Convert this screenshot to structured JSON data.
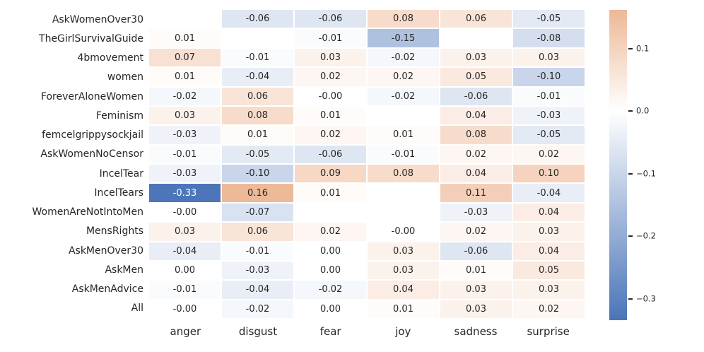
{
  "figure": {
    "background": "#ffffff",
    "text_color": "#262626"
  },
  "chart_data": {
    "type": "heatmap",
    "title": "",
    "xlabel": "",
    "ylabel": "",
    "rows": [
      "AskWomenOver30",
      "TheGirlSurvivalGuide",
      "4bmovement",
      "women",
      "ForeverAloneWomen",
      "Feminism",
      "femcelgrippysockjail",
      "AskWomenNoCensor",
      "IncelTear",
      "IncelTears",
      "WomenAreNotIntoMen",
      "MensRights",
      "AskMenOver30",
      "AskMen",
      "AskMenAdvice",
      "All"
    ],
    "columns": [
      "anger",
      "disgust",
      "fear",
      "joy",
      "sadness",
      "surprise"
    ],
    "values": [
      [
        null,
        -0.06,
        -0.06,
        0.08,
        0.06,
        -0.05
      ],
      [
        0.01,
        null,
        -0.01,
        -0.15,
        null,
        -0.08
      ],
      [
        0.07,
        -0.01,
        0.03,
        -0.02,
        0.03,
        0.03
      ],
      [
        0.01,
        -0.04,
        0.02,
        0.02,
        0.05,
        -0.1
      ],
      [
        -0.02,
        0.06,
        0.0,
        -0.02,
        -0.06,
        -0.01
      ],
      [
        0.03,
        0.08,
        0.01,
        null,
        0.04,
        -0.03
      ],
      [
        -0.03,
        0.01,
        0.02,
        0.01,
        0.08,
        -0.05
      ],
      [
        -0.01,
        -0.05,
        -0.06,
        -0.01,
        0.02,
        0.02
      ],
      [
        -0.03,
        -0.1,
        0.09,
        0.08,
        0.04,
        0.1
      ],
      [
        -0.33,
        0.16,
        0.01,
        null,
        0.11,
        -0.04
      ],
      [
        0.0,
        -0.07,
        null,
        null,
        -0.03,
        0.04
      ],
      [
        0.03,
        0.06,
        0.02,
        0.0,
        0.02,
        0.03
      ],
      [
        -0.04,
        -0.01,
        0.0,
        0.03,
        -0.06,
        0.04
      ],
      [
        0.0,
        -0.03,
        0.0,
        0.03,
        0.01,
        0.05
      ],
      [
        -0.01,
        -0.04,
        -0.02,
        0.04,
        0.03,
        0.03
      ],
      [
        0.0,
        -0.02,
        0.0,
        0.01,
        0.03,
        0.02
      ]
    ],
    "value_labels": [
      [
        null,
        "-0.06",
        "-0.06",
        "0.08",
        "0.06",
        "-0.05"
      ],
      [
        "0.01",
        null,
        "-0.01",
        "-0.15",
        null,
        "-0.08"
      ],
      [
        "0.07",
        "-0.01",
        "0.03",
        "-0.02",
        "0.03",
        "0.03"
      ],
      [
        "0.01",
        "-0.04",
        "0.02",
        "0.02",
        "0.05",
        "-0.10"
      ],
      [
        "-0.02",
        "0.06",
        "-0.00",
        "-0.02",
        "-0.06",
        "-0.01"
      ],
      [
        "0.03",
        "0.08",
        "0.01",
        null,
        "0.04",
        "-0.03"
      ],
      [
        "-0.03",
        "0.01",
        "0.02",
        "0.01",
        "0.08",
        "-0.05"
      ],
      [
        "-0.01",
        "-0.05",
        "-0.06",
        "-0.01",
        "0.02",
        "0.02"
      ],
      [
        "-0.03",
        "-0.10",
        "0.09",
        "0.08",
        "0.04",
        "0.10"
      ],
      [
        "-0.33",
        "0.16",
        "0.01",
        null,
        "0.11",
        "-0.04"
      ],
      [
        "-0.00",
        "-0.07",
        null,
        null,
        "-0.03",
        "0.04"
      ],
      [
        "0.03",
        "0.06",
        "0.02",
        "-0.00",
        "0.02",
        "0.03"
      ],
      [
        "-0.04",
        "-0.01",
        "0.00",
        "0.03",
        "-0.06",
        "0.04"
      ],
      [
        "0.00",
        "-0.03",
        "0.00",
        "0.03",
        "0.01",
        "0.05"
      ],
      [
        "-0.01",
        "-0.04",
        "-0.02",
        "0.04",
        "0.03",
        "0.03"
      ],
      [
        "-0.00",
        "-0.02",
        "0.00",
        "0.01",
        "0.03",
        "0.02"
      ]
    ],
    "color_scale": {
      "type": "diverging",
      "center": 0,
      "vmin": -0.334,
      "vmax": 0.162,
      "negative_color": "#4a74b8",
      "center_color": "#ffffff",
      "positive_color": "#eeb896"
    },
    "annotation_color": "#262626",
    "annotation_color_on_dark": "#ffffff",
    "grid": false,
    "legend_position": "right-colorbar",
    "colorbar": {
      "tick_values": [
        0.1,
        0.0,
        -0.1,
        -0.2,
        -0.3
      ],
      "tick_labels": [
        "0.1",
        "0.0",
        "−0.1",
        "−0.2",
        "−0.3"
      ]
    }
  }
}
